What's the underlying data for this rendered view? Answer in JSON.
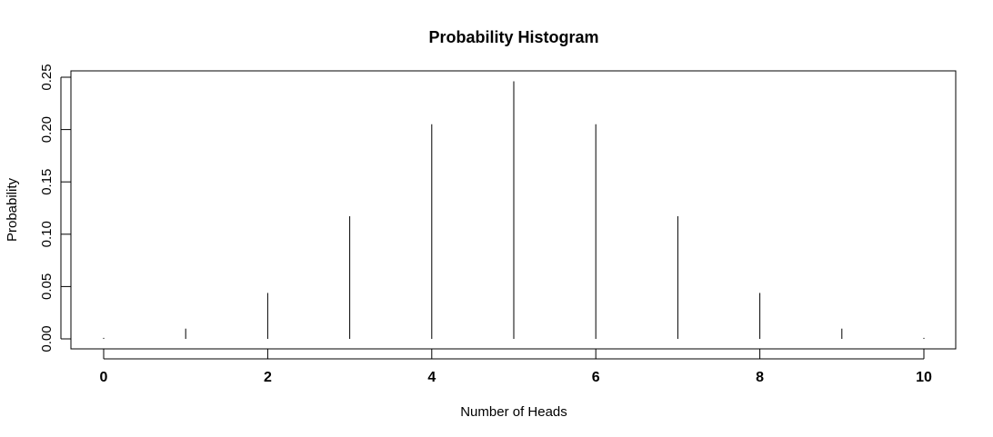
{
  "chart_data": {
    "type": "bar",
    "title": "Probability Histogram",
    "xlabel": "Number of Heads",
    "ylabel": "Probability",
    "x": [
      0,
      1,
      2,
      3,
      4,
      5,
      6,
      7,
      8,
      9,
      10
    ],
    "values": [
      0.001,
      0.0098,
      0.0439,
      0.1172,
      0.2051,
      0.2461,
      0.2051,
      0.1172,
      0.0439,
      0.0098,
      0.001
    ],
    "xlim": [
      0,
      10
    ],
    "ylim": [
      0,
      0.25
    ],
    "x_ticks": [
      "0",
      "2",
      "4",
      "6",
      "8",
      "10"
    ],
    "y_ticks": [
      "0.00",
      "0.05",
      "0.10",
      "0.15",
      "0.20",
      "0.25"
    ],
    "grid": false,
    "legend": "none"
  }
}
